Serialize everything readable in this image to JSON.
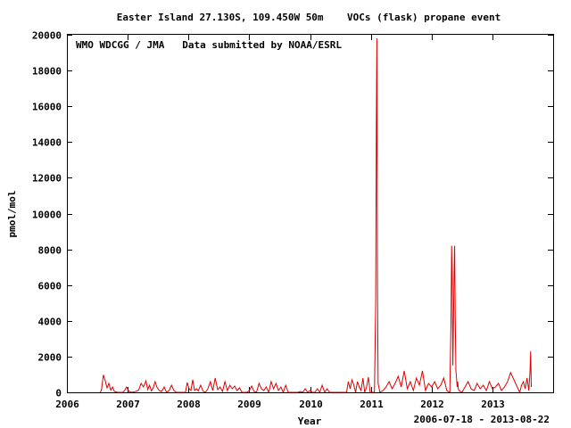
{
  "chart_data": {
    "type": "line",
    "title": "Easter Island 27.130S, 109.450W 50m    VOCs (flask) propane event",
    "annotation": "WMO WDCGG / JMA   Data submitted by NOAA/ESRL",
    "xlabel": "Year",
    "ylabel": "pmol/mol",
    "date_range": "2006-07-18 - 2013-08-22",
    "xlim": [
      2006.0,
      2014.0
    ],
    "ylim": [
      0,
      20000
    ],
    "x_ticks": [
      "2006",
      "2007",
      "2008",
      "2009",
      "2010",
      "2011",
      "2012",
      "2013"
    ],
    "y_ticks": [
      "0",
      "2000",
      "4000",
      "6000",
      "8000",
      "10000",
      "12000",
      "14000",
      "16000",
      "18000",
      "20000"
    ],
    "grid": false,
    "series_color": "#e00000",
    "series": [
      {
        "x": [
          2006.55,
          2006.57,
          2006.6,
          2006.63,
          2006.66,
          2006.69,
          2006.72,
          2006.75,
          2006.78,
          2006.81,
          2006.84,
          2006.92,
          2006.95,
          2006.98,
          2007.02,
          2007.06,
          2007.12,
          2007.18,
          2007.22,
          2007.26,
          2007.3,
          2007.33,
          2007.36,
          2007.39,
          2007.42,
          2007.45,
          2007.48,
          2007.52,
          2007.56,
          2007.6,
          2007.64,
          2007.68,
          2007.72,
          2007.76,
          2007.8,
          2007.95,
          2007.98,
          2008.01,
          2008.04,
          2008.07,
          2008.1,
          2008.13,
          2008.16,
          2008.2,
          2008.24,
          2008.28,
          2008.32,
          2008.36,
          2008.4,
          2008.44,
          2008.48,
          2008.52,
          2008.56,
          2008.6,
          2008.64,
          2008.68,
          2008.72,
          2008.76,
          2008.8,
          2008.84,
          2008.88,
          2008.96,
          2009.0,
          2009.04,
          2009.08,
          2009.12,
          2009.16,
          2009.2,
          2009.24,
          2009.28,
          2009.32,
          2009.36,
          2009.4,
          2009.44,
          2009.48,
          2009.52,
          2009.56,
          2009.6,
          2009.64,
          2009.8,
          2009.84,
          2009.88,
          2009.92,
          2009.96,
          2010.0,
          2010.04,
          2010.08,
          2010.12,
          2010.16,
          2010.2,
          2010.24,
          2010.28,
          2010.32,
          2010.6,
          2010.63,
          2010.66,
          2010.69,
          2010.72,
          2010.75,
          2010.78,
          2010.81,
          2010.84,
          2010.87,
          2010.9,
          2010.93,
          2010.96,
          2010.99,
          2011.06,
          2011.08,
          2011.09,
          2011.1,
          2011.11,
          2011.12,
          2011.15,
          2011.2,
          2011.25,
          2011.3,
          2011.35,
          2011.4,
          2011.45,
          2011.5,
          2011.55,
          2011.6,
          2011.65,
          2011.7,
          2011.75,
          2011.8,
          2011.85,
          2011.9,
          2011.95,
          2012.0,
          2012.05,
          2012.1,
          2012.15,
          2012.2,
          2012.25,
          2012.3,
          2012.32,
          2012.33,
          2012.34,
          2012.35,
          2012.36,
          2012.37,
          2012.38,
          2012.39,
          2012.4,
          2012.41,
          2012.42,
          2012.43,
          2012.44,
          2012.45,
          2012.5,
          2012.55,
          2012.6,
          2012.65,
          2012.7,
          2012.75,
          2012.8,
          2012.85,
          2012.9,
          2012.95,
          2013.0,
          2013.05,
          2013.1,
          2013.15,
          2013.2,
          2013.25,
          2013.3,
          2013.45,
          2013.48,
          2013.51,
          2013.54,
          2013.57,
          2013.6,
          2013.62,
          2013.63,
          2013.64
        ],
        "values": [
          0,
          150,
          980,
          650,
          250,
          500,
          120,
          300,
          60,
          20,
          0,
          0,
          100,
          300,
          60,
          0,
          40,
          120,
          500,
          300,
          650,
          150,
          400,
          80,
          250,
          600,
          300,
          100,
          50,
          300,
          0,
          100,
          400,
          100,
          0,
          0,
          550,
          200,
          100,
          700,
          100,
          200,
          80,
          400,
          60,
          0,
          200,
          600,
          100,
          800,
          150,
          300,
          50,
          600,
          100,
          400,
          200,
          350,
          100,
          250,
          0,
          0,
          100,
          350,
          50,
          0,
          500,
          200,
          100,
          300,
          0,
          600,
          200,
          500,
          100,
          300,
          0,
          400,
          0,
          0,
          50,
          0,
          200,
          0,
          100,
          0,
          0,
          200,
          0,
          400,
          0,
          200,
          0,
          0,
          600,
          200,
          700,
          400,
          0,
          600,
          300,
          100,
          800,
          0,
          300,
          850,
          0,
          0,
          5000,
          14800,
          19800,
          6000,
          500,
          0,
          100,
          300,
          600,
          200,
          500,
          900,
          300,
          1200,
          200,
          600,
          100,
          800,
          400,
          1200,
          100,
          500,
          300,
          600,
          200,
          400,
          800,
          100,
          0,
          4000,
          8200,
          6000,
          1500,
          4100,
          6800,
          8200,
          4000,
          1200,
          800,
          300,
          600,
          200,
          100,
          0,
          300,
          600,
          200,
          100,
          500,
          200,
          400,
          100,
          600,
          200,
          300,
          500,
          100,
          300,
          600,
          1100,
          0,
          400,
          600,
          200,
          800,
          100,
          1200,
          2300,
          300
        ]
      }
    ]
  }
}
